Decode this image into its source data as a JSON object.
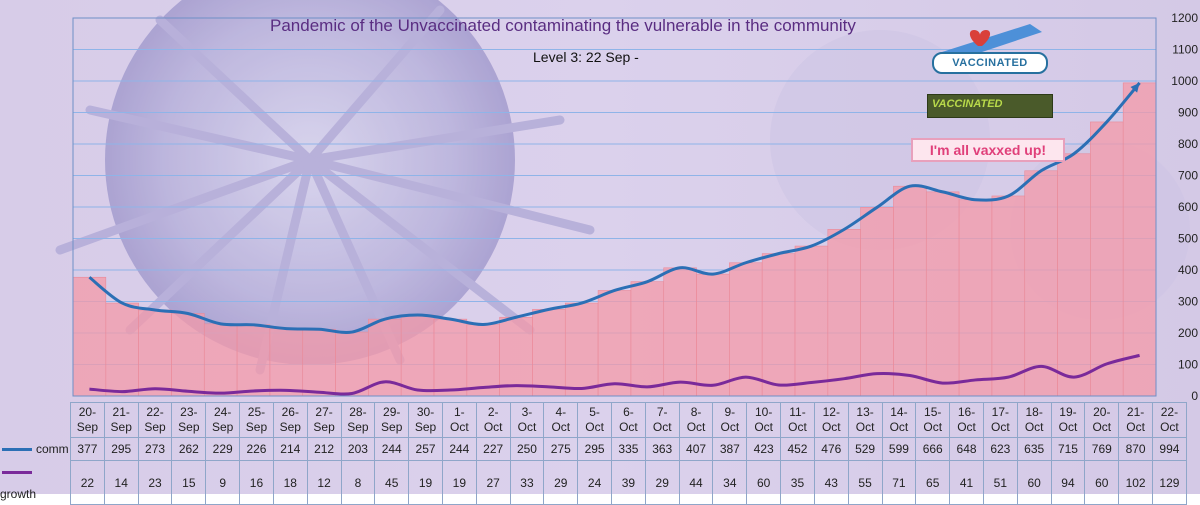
{
  "title": "Pandemic of the Unvaccinated contaminating the vulnerable in the community",
  "subtitle": "Level 3: 22 Sep -",
  "badges": {
    "vaccinated": "VACCINATED",
    "vaccinated_stamp": "VACCINATED",
    "vaxxed": "I'm all vaxxed up!"
  },
  "colors": {
    "comm": "#2b6fb5",
    "growth": "#7a2a9a",
    "area": "#f49aa8",
    "grid": "#8fb4e8"
  },
  "chart_data": {
    "type": "area",
    "title": "Pandemic of the Unvaccinated contaminating the vulnerable in the community",
    "subtitle": "Level 3: 22 Sep -",
    "categories": [
      "20-Sep",
      "21-Sep",
      "22-Sep",
      "23-Sep",
      "24-Sep",
      "25-Sep",
      "26-Sep",
      "27-Sep",
      "28-Sep",
      "29-Sep",
      "30-Sep",
      "1-Oct",
      "2-Oct",
      "3-Oct",
      "4-Oct",
      "5-Oct",
      "6-Oct",
      "7-Oct",
      "8-Oct",
      "9-Oct",
      "10-Oct",
      "11-Oct",
      "12-Oct",
      "13-Oct",
      "14-Oct",
      "15-Oct",
      "16-Oct",
      "17-Oct",
      "18-Oct",
      "19-Oct",
      "20-Oct",
      "21-Oct",
      "22-Oct"
    ],
    "category_lines": [
      [
        "20-",
        "Sep"
      ],
      [
        "21-",
        "Sep"
      ],
      [
        "22-",
        "Sep"
      ],
      [
        "23-",
        "Sep"
      ],
      [
        "24-",
        "Sep"
      ],
      [
        "25-",
        "Sep"
      ],
      [
        "26-",
        "Sep"
      ],
      [
        "27-",
        "Sep"
      ],
      [
        "28-",
        "Sep"
      ],
      [
        "29-",
        "Sep"
      ],
      [
        "30-",
        "Sep"
      ],
      [
        "1-",
        "Oct"
      ],
      [
        "2-",
        "Oct"
      ],
      [
        "3-",
        "Oct"
      ],
      [
        "4-",
        "Oct"
      ],
      [
        "5-",
        "Oct"
      ],
      [
        "6-",
        "Oct"
      ],
      [
        "7-",
        "Oct"
      ],
      [
        "8-",
        "Oct"
      ],
      [
        "9-",
        "Oct"
      ],
      [
        "10-",
        "Oct"
      ],
      [
        "11-",
        "Oct"
      ],
      [
        "12-",
        "Oct"
      ],
      [
        "13-",
        "Oct"
      ],
      [
        "14-",
        "Oct"
      ],
      [
        "15-",
        "Oct"
      ],
      [
        "16-",
        "Oct"
      ],
      [
        "17-",
        "Oct"
      ],
      [
        "18-",
        "Oct"
      ],
      [
        "19-",
        "Oct"
      ],
      [
        "20-",
        "Oct"
      ],
      [
        "21-",
        "Oct"
      ],
      [
        "22-",
        "Oct"
      ]
    ],
    "series": [
      {
        "name": "comm",
        "values": [
          377,
          295,
          273,
          262,
          229,
          226,
          214,
          212,
          203,
          244,
          257,
          244,
          227,
          250,
          275,
          295,
          335,
          363,
          407,
          387,
          423,
          452,
          476,
          529,
          599,
          666,
          648,
          623,
          635,
          715,
          769,
          870,
          994
        ]
      },
      {
        "name": "growth",
        "values": [
          22,
          14,
          23,
          15,
          9,
          16,
          18,
          12,
          8,
          45,
          19,
          19,
          27,
          33,
          29,
          24,
          39,
          29,
          44,
          34,
          60,
          35,
          43,
          55,
          71,
          65,
          41,
          51,
          60,
          94,
          60,
          102,
          129
        ]
      }
    ],
    "ylim": [
      0,
      1200
    ],
    "yticks": [
      "0",
      "100",
      "200",
      "300",
      "400",
      "500",
      "600",
      "700",
      "800",
      "900",
      "1000",
      "1100",
      "1200"
    ],
    "ytick_values": [
      0,
      100,
      200,
      300,
      400,
      500,
      600,
      700,
      800,
      900,
      1000,
      1100,
      1200
    ],
    "grid": true,
    "legend": "data-table"
  }
}
